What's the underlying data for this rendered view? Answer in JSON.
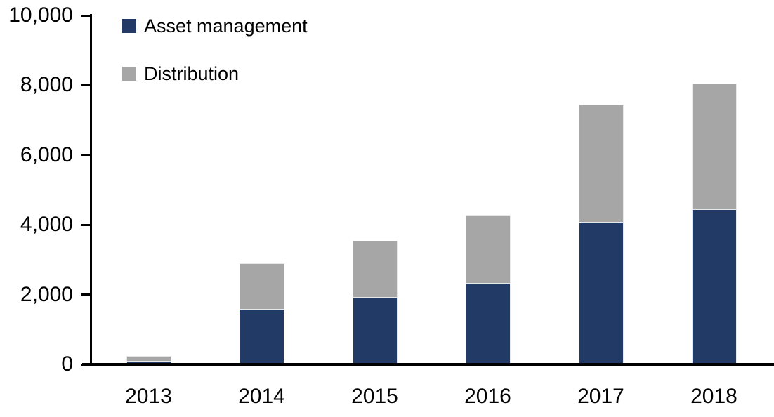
{
  "chart_data": {
    "type": "bar",
    "stacked": true,
    "title": "",
    "xlabel": "",
    "ylabel": "",
    "categories": [
      "2013",
      "2014",
      "2015",
      "2016",
      "2017",
      "2018"
    ],
    "series": [
      {
        "name": "Asset management",
        "color": "#213A66",
        "values": [
          70,
          1550,
          1900,
          2300,
          4050,
          4400
        ]
      },
      {
        "name": "Distribution",
        "color": "#A6A6A6",
        "values": [
          130,
          1300,
          1600,
          1950,
          3350,
          3600
        ]
      }
    ],
    "ylim": [
      0,
      10000
    ],
    "ytick_step": 2000,
    "ytick_labels": [
      "0",
      "2,000",
      "4,000",
      "6,000",
      "8,000",
      "10,000"
    ],
    "grid": false,
    "legend_position": "top-left",
    "axis_color": "#000000",
    "background_color": "#FFFFFF",
    "segment_border_color": "#E8E8E8"
  },
  "legend": {
    "items": [
      {
        "label": "Asset management",
        "color": "#213A66"
      },
      {
        "label": "Distribution",
        "color": "#A6A6A6"
      }
    ]
  }
}
